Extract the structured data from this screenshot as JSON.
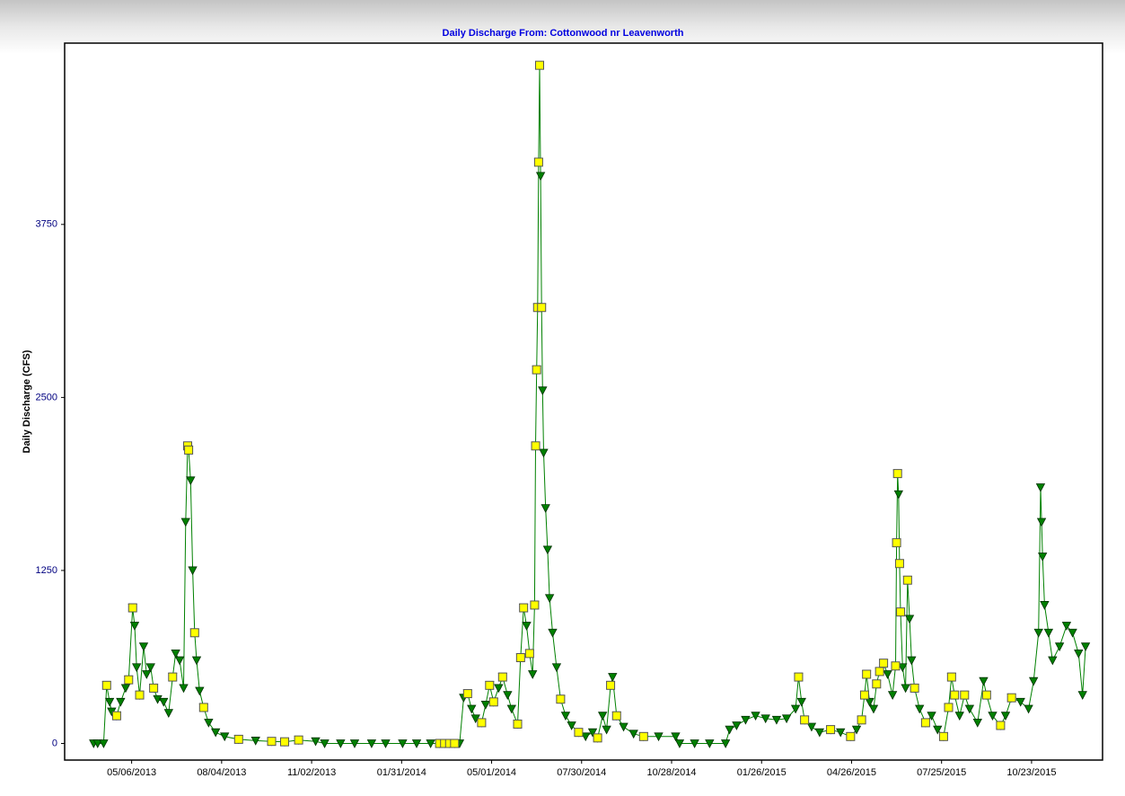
{
  "chart_data": {
    "type": "line",
    "title": "Daily Discharge From: Cottonwood nr Leavenworth",
    "y_label": "Daily Discharge (CFS)",
    "xlim": [
      "2013-02-28",
      "2016-01-02"
    ],
    "ylim": [
      -120,
      5060
    ],
    "xticks": [
      {
        "value": "2013-05-06",
        "label": "05/06/2013"
      },
      {
        "value": "2013-08-04",
        "label": "08/04/2013"
      },
      {
        "value": "2013-11-02",
        "label": "11/02/2013"
      },
      {
        "value": "2014-01-31",
        "label": "01/31/2014"
      },
      {
        "value": "2014-05-01",
        "label": "05/01/2014"
      },
      {
        "value": "2014-07-30",
        "label": "07/30/2014"
      },
      {
        "value": "2014-10-28",
        "label": "10/28/2014"
      },
      {
        "value": "2015-01-26",
        "label": "01/26/2015"
      },
      {
        "value": "2015-04-26",
        "label": "04/26/2015"
      },
      {
        "value": "2015-07-25",
        "label": "07/25/2015"
      },
      {
        "value": "2015-10-23",
        "label": "10/23/2015"
      }
    ],
    "yticks": [
      0,
      1250,
      2500,
      3750
    ],
    "series": [
      {
        "color": "#008000",
        "marker": "triangle",
        "line": true,
        "x": [
          "2013-03-29",
          "2013-04-02",
          "2013-04-08",
          "2013-04-11",
          "2013-04-14",
          "2013-04-16",
          "2013-04-21",
          "2013-04-25",
          "2013-04-30",
          "2013-05-03",
          "2013-05-07",
          "2013-05-09",
          "2013-05-11",
          "2013-05-14",
          "2013-05-18",
          "2013-05-21",
          "2013-05-25",
          "2013-05-28",
          "2013-06-01",
          "2013-06-07",
          "2013-06-12",
          "2013-06-16",
          "2013-06-19",
          "2013-06-23",
          "2013-06-27",
          "2013-06-29",
          "2013-07-01",
          "2013-07-02",
          "2013-07-04",
          "2013-07-06",
          "2013-07-08",
          "2013-07-10",
          "2013-07-13",
          "2013-07-17",
          "2013-07-22",
          "2013-07-29",
          "2013-08-07",
          "2013-08-21",
          "2013-09-07",
          "2013-09-23",
          "2013-10-06",
          "2013-10-20",
          "2013-11-06",
          "2013-11-15",
          "2013-12-01",
          "2013-12-15",
          "2014-01-01",
          "2014-01-15",
          "2014-02-01",
          "2014-02-15",
          "2014-03-01",
          "2014-03-10",
          "2014-03-15",
          "2014-03-20",
          "2014-03-25",
          "2014-03-30",
          "2014-04-03",
          "2014-04-07",
          "2014-04-11",
          "2014-04-15",
          "2014-04-21",
          "2014-04-25",
          "2014-04-29",
          "2014-05-03",
          "2014-05-08",
          "2014-05-12",
          "2014-05-17",
          "2014-05-21",
          "2014-05-27",
          "2014-05-30",
          "2014-06-02",
          "2014-06-05",
          "2014-06-08",
          "2014-06-11",
          "2014-06-13",
          "2014-06-14",
          "2014-06-15",
          "2014-06-16",
          "2014-06-17",
          "2014-06-18",
          "2014-06-19",
          "2014-06-20",
          "2014-06-21",
          "2014-06-22",
          "2014-06-24",
          "2014-06-26",
          "2014-06-28",
          "2014-07-01",
          "2014-07-05",
          "2014-07-09",
          "2014-07-14",
          "2014-07-20",
          "2014-07-27",
          "2014-08-03",
          "2014-08-10",
          "2014-08-15",
          "2014-08-20",
          "2014-08-24",
          "2014-08-28",
          "2014-08-30",
          "2014-09-03",
          "2014-09-10",
          "2014-09-20",
          "2014-09-30",
          "2014-10-15",
          "2014-11-01",
          "2014-11-05",
          "2014-11-20",
          "2014-12-05",
          "2014-12-21",
          "2014-12-25",
          "2015-01-01",
          "2015-01-10",
          "2015-01-20",
          "2015-01-30",
          "2015-02-10",
          "2015-02-20",
          "2015-03-01",
          "2015-03-04",
          "2015-03-07",
          "2015-03-10",
          "2015-03-17",
          "2015-03-25",
          "2015-04-05",
          "2015-04-15",
          "2015-04-25",
          "2015-05-01",
          "2015-05-06",
          "2015-05-09",
          "2015-05-11",
          "2015-05-14",
          "2015-05-18",
          "2015-05-21",
          "2015-05-24",
          "2015-05-28",
          "2015-06-01",
          "2015-06-06",
          "2015-06-09",
          "2015-06-10",
          "2015-06-11",
          "2015-06-12",
          "2015-06-13",
          "2015-06-14",
          "2015-06-16",
          "2015-06-19",
          "2015-06-21",
          "2015-06-23",
          "2015-06-25",
          "2015-06-28",
          "2015-07-03",
          "2015-07-09",
          "2015-07-15",
          "2015-07-21",
          "2015-07-27",
          "2015-08-01",
          "2015-08-04",
          "2015-08-07",
          "2015-08-12",
          "2015-08-17",
          "2015-08-22",
          "2015-08-30",
          "2015-09-05",
          "2015-09-08",
          "2015-09-14",
          "2015-09-22",
          "2015-09-27",
          "2015-10-03",
          "2015-10-12",
          "2015-10-20",
          "2015-10-25",
          "2015-10-30",
          "2015-11-01",
          "2015-11-02",
          "2015-11-03",
          "2015-11-05",
          "2015-11-09",
          "2015-11-13",
          "2015-11-20",
          "2015-11-27",
          "2015-12-03",
          "2015-12-09",
          "2015-12-13",
          "2015-12-16"
        ],
        "values": [
          0,
          0,
          0,
          420,
          300,
          230,
          200,
          300,
          400,
          460,
          980,
          850,
          550,
          350,
          700,
          500,
          550,
          400,
          320,
          300,
          220,
          480,
          650,
          600,
          400,
          1600,
          2150,
          2120,
          1900,
          1250,
          800,
          600,
          380,
          260,
          150,
          80,
          50,
          30,
          20,
          15,
          12,
          25,
          15,
          0,
          0,
          0,
          0,
          0,
          0,
          0,
          0,
          0,
          0,
          0,
          0,
          0,
          330,
          360,
          250,
          180,
          150,
          280,
          420,
          300,
          400,
          480,
          350,
          250,
          140,
          620,
          980,
          850,
          650,
          500,
          1000,
          2150,
          2700,
          3150,
          4200,
          4900,
          4100,
          3150,
          2550,
          2100,
          1700,
          1400,
          1050,
          800,
          550,
          320,
          200,
          130,
          80,
          50,
          80,
          40,
          200,
          100,
          420,
          480,
          200,
          120,
          70,
          50,
          50,
          50,
          0,
          0,
          0,
          0,
          100,
          130,
          170,
          200,
          180,
          170,
          180,
          250,
          480,
          300,
          170,
          120,
          80,
          100,
          80,
          50,
          100,
          170,
          350,
          500,
          300,
          250,
          430,
          520,
          580,
          500,
          350,
          560,
          1450,
          1950,
          1800,
          1300,
          950,
          550,
          400,
          1180,
          900,
          600,
          400,
          250,
          150,
          200,
          100,
          50,
          260,
          480,
          350,
          200,
          350,
          250,
          150,
          450,
          350,
          200,
          130,
          200,
          330,
          300,
          250,
          450,
          800,
          1850,
          1600,
          1350,
          1000,
          800,
          600,
          700,
          850,
          800,
          650,
          350,
          700
        ]
      },
      {
        "color": "#ffff00",
        "marker": "square",
        "x": [
          "2013-04-11",
          "2013-04-21",
          "2013-05-03",
          "2013-05-07",
          "2013-05-14",
          "2013-05-28",
          "2013-06-16",
          "2013-07-01",
          "2013-07-02",
          "2013-07-08",
          "2013-07-17",
          "2013-08-21",
          "2013-09-23",
          "2013-10-06",
          "2013-10-20",
          "2014-03-10",
          "2014-03-15",
          "2014-03-20",
          "2014-03-25",
          "2014-04-07",
          "2014-04-21",
          "2014-04-29",
          "2014-05-03",
          "2014-05-12",
          "2014-05-27",
          "2014-05-30",
          "2014-06-02",
          "2014-06-08",
          "2014-06-13",
          "2014-06-14",
          "2014-06-15",
          "2014-06-16",
          "2014-06-17",
          "2014-06-18",
          "2014-06-20",
          "2014-07-09",
          "2014-07-27",
          "2014-08-15",
          "2014-08-28",
          "2014-09-03",
          "2014-09-30",
          "2015-03-04",
          "2015-03-10",
          "2015-04-05",
          "2015-04-25",
          "2015-05-06",
          "2015-05-09",
          "2015-05-11",
          "2015-05-21",
          "2015-05-24",
          "2015-05-28",
          "2015-06-09",
          "2015-06-10",
          "2015-06-11",
          "2015-06-13",
          "2015-06-14",
          "2015-06-21",
          "2015-06-28",
          "2015-07-09",
          "2015-07-27",
          "2015-08-01",
          "2015-08-04",
          "2015-08-07",
          "2015-08-17",
          "2015-09-08",
          "2015-09-22",
          "2015-10-03"
        ],
        "values": [
          420,
          200,
          460,
          980,
          350,
          400,
          480,
          2150,
          2120,
          800,
          260,
          30,
          15,
          12,
          25,
          0,
          0,
          0,
          0,
          360,
          150,
          420,
          300,
          480,
          140,
          620,
          980,
          650,
          1000,
          2150,
          2700,
          3150,
          4200,
          4900,
          3150,
          320,
          80,
          40,
          420,
          200,
          50,
          480,
          170,
          100,
          50,
          170,
          350,
          500,
          430,
          520,
          580,
          560,
          1450,
          1950,
          1300,
          950,
          1180,
          400,
          150,
          50,
          260,
          480,
          350,
          350,
          350,
          130,
          330
        ]
      }
    ]
  }
}
